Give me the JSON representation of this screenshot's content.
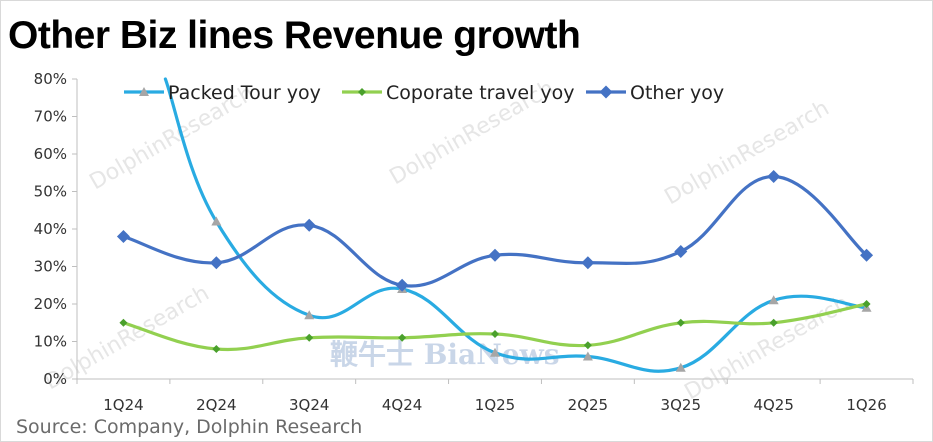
{
  "header": {
    "title": "Other Biz lines Revenue growth"
  },
  "footer": {
    "source": "Source: Company, Dolphin Research"
  },
  "watermarks": {
    "brand": "DolphinResearch",
    "news": "鞭牛士 BiaNews"
  },
  "colors": {
    "packed_tour": "#29abe2",
    "corporate": "#92d050",
    "other": "#4472c4",
    "packed_tour_marker": "#a6a6a6",
    "corporate_marker": "#4aa02c",
    "other_marker": "#4472c4"
  },
  "chart_data": {
    "type": "line",
    "categories": [
      "1Q24",
      "2Q24",
      "3Q24",
      "4Q24",
      "1Q25",
      "2Q25",
      "3Q25",
      "4Q25",
      "1Q26"
    ],
    "ylim": [
      0,
      0.8
    ],
    "yticks": [
      "0%",
      "10%",
      "20%",
      "30%",
      "40%",
      "50%",
      "60%",
      "70%",
      "80%"
    ],
    "grid": false,
    "legend_position": "top",
    "series": [
      {
        "name": "Packed Tour yoy",
        "marker": "triangle",
        "values": [
          null,
          0.42,
          0.17,
          0.24,
          0.07,
          0.06,
          0.03,
          0.21,
          0.19
        ],
        "start_value": 0.8
      },
      {
        "name": "Coporate travel yoy",
        "marker": "small-diamond",
        "values": [
          0.15,
          0.08,
          0.11,
          0.11,
          0.12,
          0.09,
          0.15,
          0.15,
          0.2
        ]
      },
      {
        "name": "Other yoy",
        "marker": "diamond",
        "values": [
          0.38,
          0.31,
          0.41,
          0.25,
          0.33,
          0.31,
          0.34,
          0.54,
          0.33
        ]
      }
    ]
  }
}
